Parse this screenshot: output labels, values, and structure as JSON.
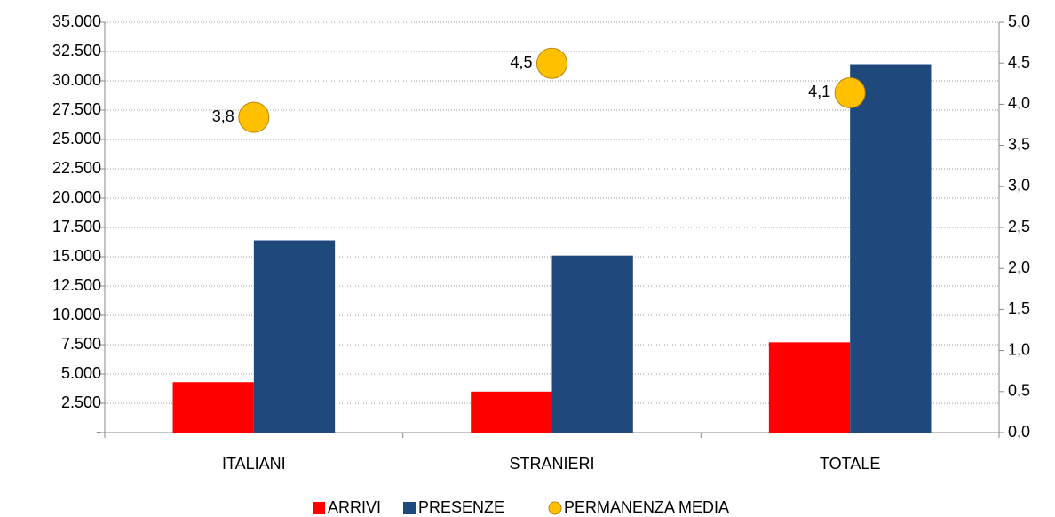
{
  "chart_data": {
    "type": "bar",
    "categories": [
      "ITALIANI",
      "STRANIERI",
      "TOTALE"
    ],
    "series": [
      {
        "name": "ARRIVI",
        "color": "#ff0000",
        "values": [
          4300,
          3500,
          7700
        ]
      },
      {
        "name": "PRESENZE",
        "color": "#1f497d",
        "values": [
          16400,
          15100,
          31400
        ]
      },
      {
        "name": "PERMANENZA MEDIA",
        "color": "#ffc000",
        "axis": "y2",
        "type": "scatter",
        "values": [
          3.84,
          4.5,
          4.14
        ],
        "value_labels": [
          "3,8",
          "4,5",
          "4,1"
        ]
      }
    ],
    "ylim": [
      0,
      35000
    ],
    "yticks": [
      {
        "value": 0,
        "label": "-"
      },
      {
        "value": 2500,
        "label": "2.500"
      },
      {
        "value": 5000,
        "label": "5.000"
      },
      {
        "value": 7500,
        "label": "7.500"
      },
      {
        "value": 10000,
        "label": "10.000"
      },
      {
        "value": 12500,
        "label": "12.500"
      },
      {
        "value": 15000,
        "label": "15.000"
      },
      {
        "value": 17500,
        "label": "17.500"
      },
      {
        "value": 20000,
        "label": "20.000"
      },
      {
        "value": 22500,
        "label": "22.500"
      },
      {
        "value": 25000,
        "label": "25.000"
      },
      {
        "value": 27500,
        "label": "27.500"
      },
      {
        "value": 30000,
        "label": "30.000"
      },
      {
        "value": 32500,
        "label": "32.500"
      },
      {
        "value": 35000,
        "label": "35.000"
      }
    ],
    "y2lim": [
      0,
      5
    ],
    "y2ticks": [
      {
        "value": 0,
        "label": "0,0"
      },
      {
        "value": 0.5,
        "label": "0,5"
      },
      {
        "value": 1,
        "label": "1,0"
      },
      {
        "value": 1.5,
        "label": "1,5"
      },
      {
        "value": 2,
        "label": "2,0"
      },
      {
        "value": 2.5,
        "label": "2,5"
      },
      {
        "value": 3,
        "label": "3,0"
      },
      {
        "value": 3.5,
        "label": "3,5"
      },
      {
        "value": 4,
        "label": "4,0"
      },
      {
        "value": 4.5,
        "label": "4,5"
      },
      {
        "value": 5,
        "label": "5,0"
      }
    ],
    "grid": true,
    "legend": "bottom"
  }
}
